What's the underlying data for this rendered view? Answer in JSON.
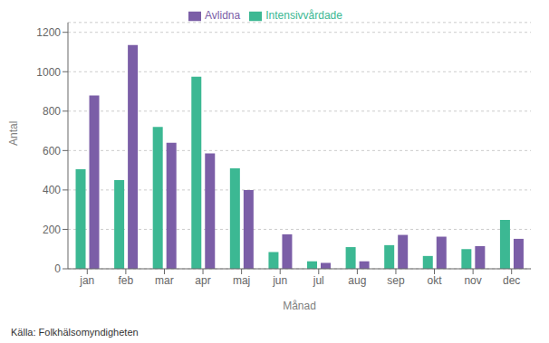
{
  "chart_data": {
    "type": "bar",
    "xlabel": "Månad",
    "ylabel": "Antal",
    "annotations": [
      "Källa: Folkhälsomyndigheten"
    ],
    "categories": [
      "jan",
      "feb",
      "mar",
      "apr",
      "maj",
      "jun",
      "jul",
      "aug",
      "sep",
      "okt",
      "nov",
      "dec"
    ],
    "series": [
      {
        "name": "Intensivvårdade",
        "color": "#3CB893",
        "values": [
          505,
          450,
          720,
          975,
          510,
          85,
          38,
          110,
          120,
          65,
          100,
          248
        ]
      },
      {
        "name": "Avlidna",
        "color": "#7B5EA7",
        "values": [
          880,
          1135,
          640,
          585,
          400,
          175,
          30,
          38,
          172,
          163,
          115,
          152
        ]
      }
    ],
    "ylim": [
      0,
      1250
    ],
    "yticks": [
      0,
      200,
      400,
      600,
      800,
      1000,
      1200
    ],
    "grid": true,
    "legend": "top"
  }
}
